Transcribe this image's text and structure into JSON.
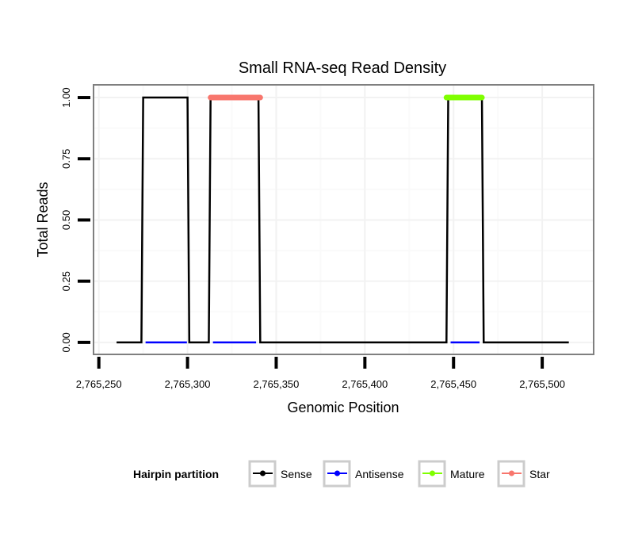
{
  "chart_data": {
    "type": "line",
    "title": "Small RNA-seq Read Density",
    "xlabel": "Genomic Position",
    "ylabel": "Total Reads",
    "xlim": [
      2765247,
      2765529
    ],
    "ylim": [
      -0.049,
      1.052
    ],
    "x_ticks": [
      2765250,
      2765300,
      2765350,
      2765400,
      2765450,
      2765500
    ],
    "x_tick_labels": [
      "2,765,250",
      "2,765,300",
      "2,765,350",
      "2,765,400",
      "2,765,450",
      "2,765,500"
    ],
    "y_ticks": [
      0,
      0.25,
      0.5,
      0.75,
      1.0
    ],
    "y_tick_labels": [
      "0.00",
      "0.25",
      "0.50",
      "0.75",
      "1.00"
    ],
    "grid": true,
    "legend": {
      "title": "Hairpin partition",
      "position": "bottom",
      "entries": [
        "Sense",
        "Antisense",
        "Mature",
        "Star"
      ]
    },
    "series": [
      {
        "name": "Sense",
        "color": "#000000",
        "x": [
          2765260,
          2765274,
          2765275,
          2765300,
          2765301,
          2765312,
          2765313,
          2765340,
          2765341,
          2765446,
          2765447,
          2765466,
          2765467,
          2765515
        ],
        "y": [
          0,
          0,
          1,
          1,
          0,
          0,
          1,
          1,
          0,
          0,
          1,
          1,
          0,
          0
        ]
      },
      {
        "name": "Antisense",
        "color": "#0000ff",
        "segments": [
          [
            2765275,
            2765301
          ],
          [
            2765313,
            2765340
          ],
          [
            2765447,
            2765466
          ]
        ],
        "y": 0
      },
      {
        "name": "Mature",
        "color": "#7fff00",
        "segments": [
          [
            2765446,
            2765466
          ]
        ],
        "y": 1
      },
      {
        "name": "Star",
        "color": "#f8766d",
        "segments": [
          [
            2765313,
            2765341
          ]
        ],
        "y": 1
      }
    ]
  }
}
